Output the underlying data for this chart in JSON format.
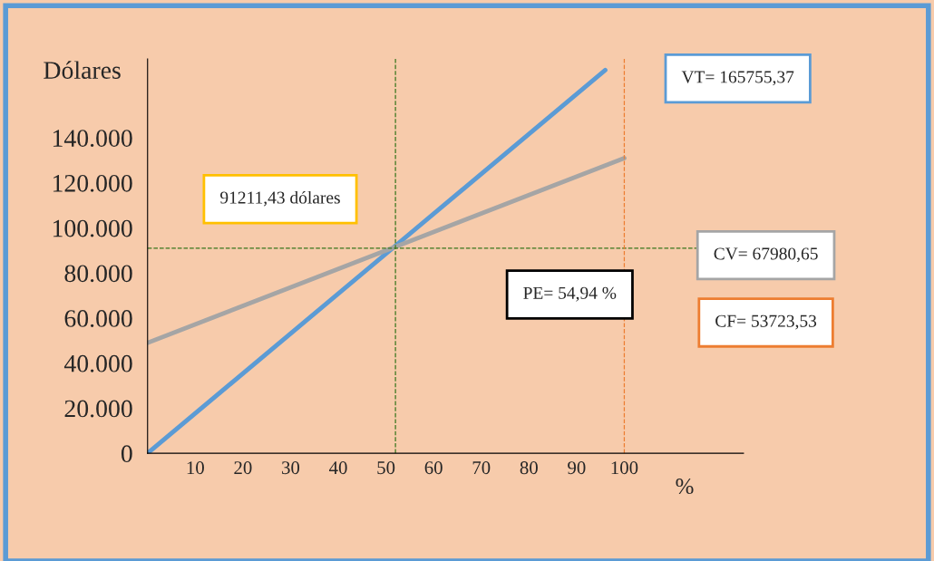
{
  "chart_data": {
    "type": "line",
    "xlabel": "%",
    "ylabel": "Dólares",
    "series": [
      {
        "color": "#5b9bd5",
        "x": [
          0,
          96
        ],
        "values": [
          0,
          170000
        ]
      },
      {
        "color": "#a5a5a5",
        "x": [
          0,
          100
        ],
        "values": [
          49000,
          131000
        ]
      }
    ],
    "xlim": [
      0,
      125
    ],
    "ylim": [
      0,
      175000
    ],
    "xticks": [
      10,
      20,
      30,
      40,
      50,
      60,
      70,
      80,
      90,
      100
    ],
    "yticks": [
      {
        "value": 0,
        "label": "0"
      },
      {
        "value": 20000,
        "label": "20.000"
      },
      {
        "value": 40000,
        "label": "40.000"
      },
      {
        "value": 60000,
        "label": "60.000"
      },
      {
        "value": 80000,
        "label": "80.000"
      },
      {
        "value": 100000,
        "label": "100.000"
      },
      {
        "value": 120000,
        "label": "120.000"
      },
      {
        "value": 140000,
        "label": "140.000"
      }
    ],
    "ref_lines": [
      {
        "axis": "x",
        "value": 52,
        "color": "#38761d",
        "line_style": "dashed"
      },
      {
        "axis": "y",
        "value": 91000,
        "color": "#38761d",
        "line_style": "dashed"
      },
      {
        "axis": "x",
        "value": 100,
        "color": "#ed7d31",
        "line_style": "dashed"
      }
    ],
    "annotations": [
      "VT= 165755,37",
      "91211,43 dólares",
      "CV= 67980,65",
      "PE= 54,94 %",
      "CF= 53723,53"
    ],
    "grid": false,
    "marker": "none",
    "line_style": "solid"
  }
}
